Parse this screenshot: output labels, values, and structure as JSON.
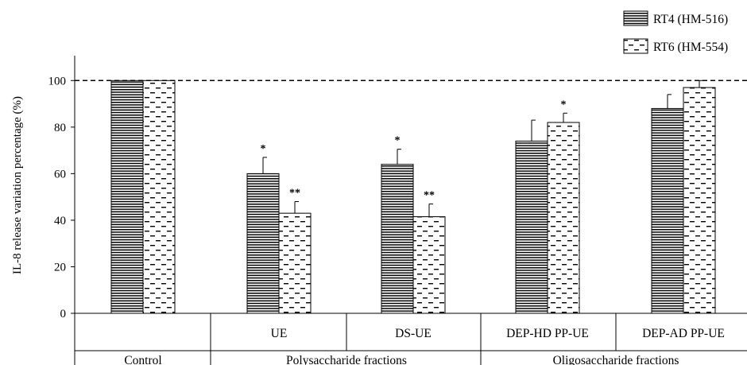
{
  "chart_data": {
    "type": "bar",
    "title": "",
    "ylabel": "IL-8 release variation percentage (%)",
    "xlabel": "",
    "ylim": [
      0,
      110
    ],
    "yticks": [
      0,
      20,
      40,
      60,
      80,
      100
    ],
    "reference_line": 100,
    "grid": false,
    "legend_position": "top-right",
    "categories": [
      "Control",
      "UE",
      "DS-UE",
      "DEP-HD PP-UE",
      "DEP-AD PP-UE"
    ],
    "groups": [
      {
        "label": "Control",
        "categories": [
          "Control"
        ]
      },
      {
        "label": "Polysaccharide fractions",
        "categories": [
          "UE",
          "DS-UE"
        ]
      },
      {
        "label": "Oligosaccharide fractions",
        "categories": [
          "DEP-HD PP-UE",
          "DEP-AD PP-UE"
        ]
      }
    ],
    "series": [
      {
        "name": "RT4 (HM-516)",
        "pattern": "horizontal-lines",
        "values": [
          100,
          60,
          64,
          74,
          88
        ],
        "errors": [
          0,
          7,
          6.5,
          9,
          6
        ],
        "significance": [
          "",
          "*",
          "*",
          "",
          ""
        ]
      },
      {
        "name": "RT6 (HM-554)",
        "pattern": "dashes",
        "values": [
          100,
          43,
          41.5,
          82,
          97
        ],
        "errors": [
          0,
          5,
          5.5,
          4,
          3
        ],
        "significance": [
          "",
          "**",
          "**",
          "*",
          ""
        ]
      }
    ]
  }
}
